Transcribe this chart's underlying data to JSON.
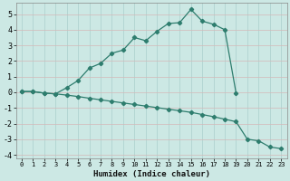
{
  "xlabel": "Humidex (Indice chaleur)",
  "xlim": [
    -0.5,
    23.5
  ],
  "ylim": [
    -4.2,
    5.7
  ],
  "yticks": [
    -4,
    -3,
    -2,
    -1,
    0,
    1,
    2,
    3,
    4,
    5
  ],
  "xticks": [
    0,
    1,
    2,
    3,
    4,
    5,
    6,
    7,
    8,
    9,
    10,
    11,
    12,
    13,
    14,
    15,
    16,
    17,
    18,
    19,
    20,
    21,
    22,
    23
  ],
  "bg_color": "#cce8e4",
  "line_color": "#2e7d6e",
  "grid_color": "#aacfcc",
  "line1_x": [
    0,
    1,
    2,
    3,
    4,
    5,
    6,
    7,
    8,
    9,
    10,
    11,
    12,
    13,
    14,
    15,
    16,
    17,
    18,
    19
  ],
  "line1_y": [
    0.05,
    0.05,
    -0.05,
    -0.1,
    0.3,
    0.75,
    1.55,
    1.85,
    2.5,
    2.7,
    3.5,
    3.3,
    3.9,
    4.4,
    4.45,
    5.3,
    4.55,
    4.35,
    4.0,
    -0.05
  ],
  "line2_x": [
    0,
    1,
    2,
    3,
    4,
    5,
    6,
    7,
    8,
    9,
    10,
    11,
    12,
    13,
    14,
    15,
    16,
    17,
    18,
    19,
    20,
    21,
    22,
    23
  ],
  "line2_y": [
    0.05,
    0.05,
    -0.05,
    -0.1,
    -0.18,
    -0.27,
    -0.38,
    -0.48,
    -0.58,
    -0.68,
    -0.78,
    -0.88,
    -0.98,
    -1.08,
    -1.18,
    -1.28,
    -1.42,
    -1.56,
    -1.72,
    -1.88,
    -3.0,
    -3.1,
    -3.5,
    -3.6
  ]
}
